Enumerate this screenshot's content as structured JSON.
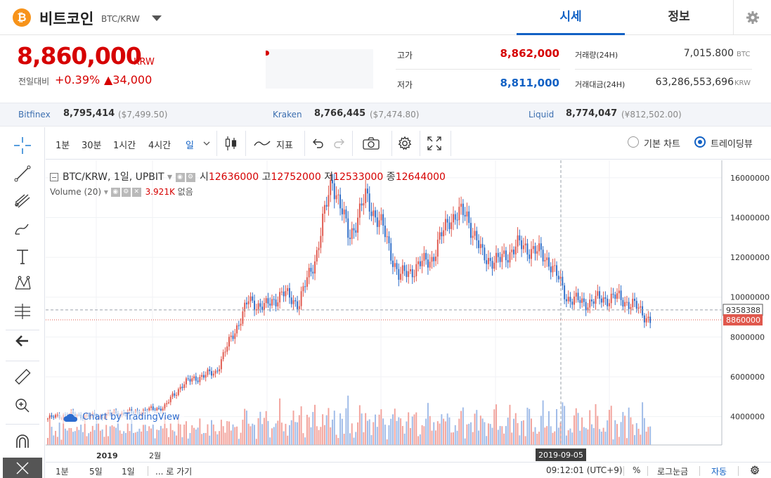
{
  "header": {
    "logo_glyph": "₿",
    "coin_name": "비트코인",
    "coin_pair": "BTC/KRW",
    "tabs": [
      {
        "label": "시세",
        "active": true
      },
      {
        "label": "정보",
        "active": false
      }
    ]
  },
  "ticker": {
    "price": "8,860,000",
    "unit": "KRW",
    "change_label": "전일대비",
    "change_pct": "+0.39%",
    "change_abs": "▲34,000"
  },
  "stats": {
    "high_label": "고가",
    "high_value": "8,862,000",
    "low_label": "저가",
    "low_value": "8,811,000",
    "volume_label": "거래량(24H)",
    "volume_value": "7,015.800",
    "volume_unit": "BTC",
    "amount_label": "거래대금(24H)",
    "amount_value": "63,286,553,696",
    "amount_unit": "KRW"
  },
  "exchanges": [
    {
      "name": "Bitfinex",
      "price": "8,795,414",
      "usd": "($7,499.50)"
    },
    {
      "name": "Kraken",
      "price": "8,766,445",
      "usd": "($7,474.80)"
    },
    {
      "name": "Liquid",
      "price": "8,774,047",
      "usd": "(¥812,502.00)"
    }
  ],
  "toolbar": {
    "intervals": [
      "1분",
      "30분",
      "1시간",
      "4시간",
      "일"
    ],
    "active_interval": "일",
    "indicators_label": "지표",
    "chart_mode_basic": "기본 차트",
    "chart_mode_tv": "트레이딩뷰",
    "selected_mode": "트레이딩뷰"
  },
  "legend": {
    "symbol": "BTC/KRW, 1일, UPBIT",
    "open_label": "시",
    "open": "12636000",
    "high_label": "고",
    "high": "12752000",
    "low_label": "저",
    "low": "12533000",
    "close_label": "종",
    "close": "12644000",
    "volume_label": "Volume (20)",
    "volume_value": "3.921K",
    "volume_extra": "없음"
  },
  "watermark": "Chart by TradingView",
  "colors": {
    "up": "#e0584d",
    "down": "#2f6ec8",
    "accent": "#1261c4",
    "price_red": "#d60000"
  },
  "chart_data": {
    "type": "candlestick",
    "y_ticks": [
      4000000,
      6000000,
      8000000,
      10000000,
      12000000,
      14000000,
      16000000
    ],
    "y_tick_labels": [
      "4000000",
      "6000000",
      "8000000",
      "10000000",
      "12000000",
      "14000000",
      "16000000"
    ],
    "ylim": [
      3000000,
      17300000
    ],
    "crosshair_value": "9358388",
    "crosshair_y": 9358388,
    "last_price_label": "8860000",
    "last_price": 8860000,
    "crosshair_date": "2019-09-05",
    "x_labels": [
      "2019",
      "2월"
    ],
    "close_path": [
      [
        "2018-12",
        3900000
      ],
      [
        "2019-01",
        4100000
      ],
      [
        "2019-01-15",
        4050000
      ],
      [
        "2019-02",
        4000000
      ],
      [
        "2019-02-15",
        4150000
      ],
      [
        "2019-03",
        4200000
      ],
      [
        "2019-03-15",
        4300000
      ],
      [
        "2019-04-01",
        4500000
      ],
      [
        "2019-04-03",
        5600000
      ],
      [
        "2019-04-20",
        6000000
      ],
      [
        "2019-05-01",
        6200000
      ],
      [
        "2019-05-15",
        8000000
      ],
      [
        "2019-05-25",
        9800000
      ],
      [
        "2019-06-01",
        9500000
      ],
      [
        "2019-06-10",
        10200000
      ],
      [
        "2019-06-15",
        9700000
      ],
      [
        "2019-06-22",
        12000000
      ],
      [
        "2019-06-26",
        16000000
      ],
      [
        "2019-07-01",
        13000000
      ],
      [
        "2019-07-05",
        15000000
      ],
      [
        "2019-07-10",
        13500000
      ],
      [
        "2019-07-17",
        11000000
      ],
      [
        "2019-07-25",
        11500000
      ],
      [
        "2019-08-01",
        12000000
      ],
      [
        "2019-08-07",
        14000000
      ],
      [
        "2019-08-12",
        14200000
      ],
      [
        "2019-08-20",
        12000000
      ],
      [
        "2019-08-30",
        11800000
      ],
      [
        "2019-09-05",
        12600000
      ],
      [
        "2019-09-12",
        12400000
      ],
      [
        "2019-09-20",
        11800000
      ],
      [
        "2019-09-24",
        10000000
      ],
      [
        "2019-10-01",
        9700000
      ],
      [
        "2019-10-10",
        9900000
      ],
      [
        "2019-10-15",
        10000000
      ],
      [
        "2019-10-20",
        9600000
      ],
      [
        "2019-10-24",
        8860000
      ]
    ]
  },
  "bottom_bar": {
    "ranges": [
      "1분",
      "5일",
      "1일"
    ],
    "goto": "... 로 가기",
    "time": "09:12:01 (UTC+9)",
    "pct": "%",
    "log": "로그눈금",
    "auto": "자동"
  }
}
